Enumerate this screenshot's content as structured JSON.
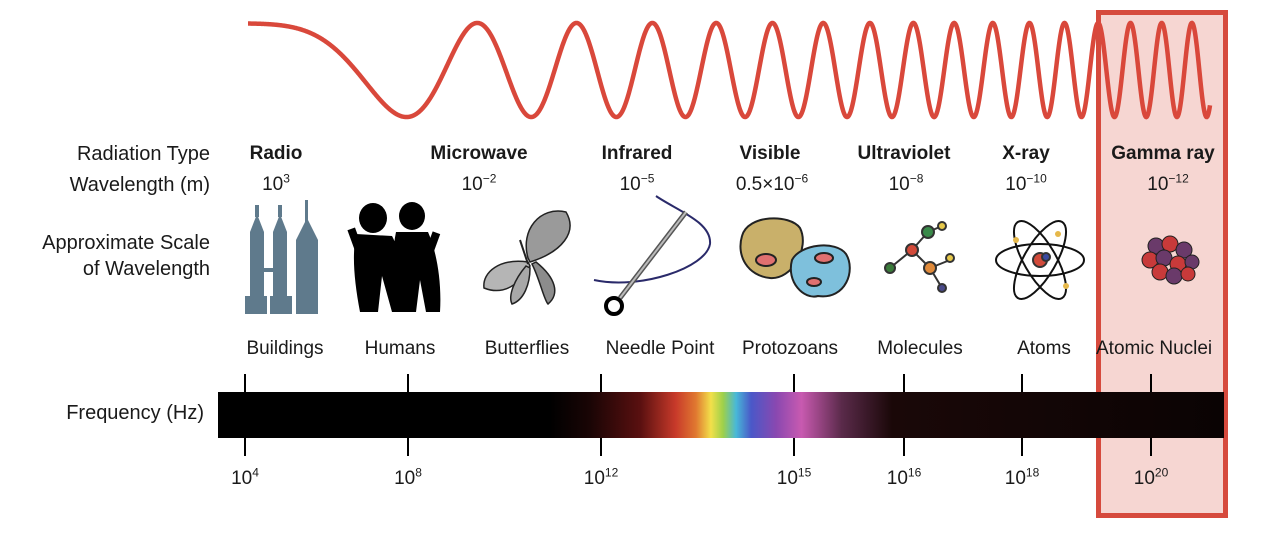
{
  "row_labels": {
    "radiation_type": "Radiation Type",
    "wavelength": "Wavelength (m)",
    "scale_line1": "Approximate Scale",
    "scale_line2": "of Wavelength",
    "frequency": "Frequency (Hz)"
  },
  "radiation_types": [
    {
      "name": "Radio",
      "wl_base": "10",
      "wl_exp": "3",
      "object": "Buildings",
      "icon": "buildings-icon"
    },
    {
      "name": "Microwave",
      "wl_base": "10",
      "wl_exp": "−2",
      "object": "Humans",
      "icon": "humans-icon"
    },
    {
      "name": "Infrared",
      "wl_base": "10",
      "wl_exp": "−5",
      "object": "Butterflies",
      "icon": "butterfly-icon"
    },
    {
      "name": "Visible",
      "wl_base": "0.5×10",
      "wl_exp": "−6",
      "object": "Needle Point",
      "icon": "needle-icon"
    },
    {
      "name": "Ultraviolet",
      "wl_base": "10",
      "wl_exp": "−8",
      "object": "Protozoans",
      "icon": "protozoa-icon"
    },
    {
      "name": "X-ray",
      "wl_base": "10",
      "wl_exp": "−10",
      "object": "Molecules",
      "icon": "molecule-icon"
    },
    {
      "name": "Gamma ray",
      "wl_base": "10",
      "wl_exp": "−12",
      "object": "Atoms",
      "icon": "atom-icon"
    }
  ],
  "extra_object": {
    "label": "Atomic Nuclei",
    "icon": "nucleus-icon"
  },
  "frequency_ticks": [
    {
      "base": "10",
      "exp": "4"
    },
    {
      "base": "10",
      "exp": "8"
    },
    {
      "base": "10",
      "exp": "12"
    },
    {
      "base": "10",
      "exp": "15"
    },
    {
      "base": "10",
      "exp": "16"
    },
    {
      "base": "10",
      "exp": "18"
    },
    {
      "base": "10",
      "exp": "20"
    }
  ],
  "highlight": {
    "target": "Gamma ray",
    "color": "#d9483b",
    "fill": "#f7d4d0"
  },
  "wave_color": "#d9483b"
}
